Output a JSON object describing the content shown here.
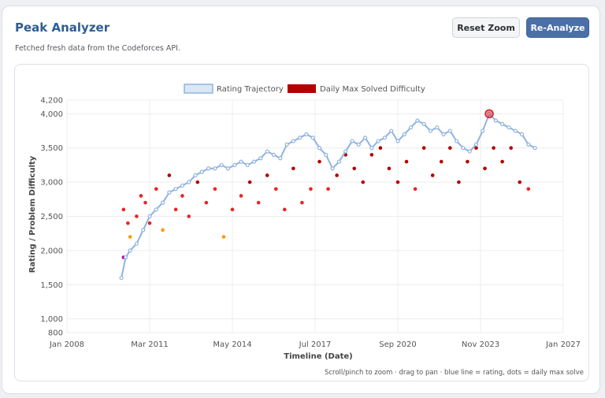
{
  "header": {
    "title": "Peak Analyzer",
    "subtitle": "Fetched fresh data from the Codeforces API.",
    "reset_zoom_label": "Reset Zoom",
    "reanalyze_label": "Re-Analyze"
  },
  "colors": {
    "title": "#2f5d93",
    "primary_button": "#4a70a7",
    "rating_line": "#8fb3e0",
    "daily_max": "#b30000",
    "peak_marker": "#e0303a"
  },
  "chart_data": {
    "type": "scatter",
    "xlabel": "Timeline (Date)",
    "ylabel": "Rating / Problem Difficulty",
    "x_ticks": [
      "Jan 2008",
      "Mar 2011",
      "May 2014",
      "Jul 2017",
      "Sep 2020",
      "Nov 2023",
      "Jan 2027"
    ],
    "y_ticks": [
      800,
      1000,
      1500,
      2000,
      2500,
      3000,
      3500,
      4000,
      4200
    ],
    "xlim": [
      "2008-01",
      "2027-01"
    ],
    "ylim": [
      800,
      4200
    ],
    "grid": true,
    "legend_position": "top",
    "legend": [
      "Rating Trajectory",
      "Daily Max Solved Difficulty"
    ],
    "footnote": "Scroll/pinch to zoom · drag to pan · blue line = rating, dots = daily max solve",
    "peak": {
      "x": "2024-03",
      "y": 4000
    },
    "series": [
      {
        "name": "Rating Trajectory",
        "points": [
          [
            "2010-02",
            1600
          ],
          [
            "2010-04",
            1900
          ],
          [
            "2010-06",
            2000
          ],
          [
            "2010-09",
            2100
          ],
          [
            "2010-12",
            2300
          ],
          [
            "2011-03",
            2500
          ],
          [
            "2011-06",
            2600
          ],
          [
            "2011-09",
            2700
          ],
          [
            "2011-12",
            2850
          ],
          [
            "2012-03",
            2900
          ],
          [
            "2012-06",
            2950
          ],
          [
            "2012-09",
            3000
          ],
          [
            "2012-12",
            3100
          ],
          [
            "2013-03",
            3150
          ],
          [
            "2013-06",
            3200
          ],
          [
            "2013-09",
            3200
          ],
          [
            "2013-12",
            3250
          ],
          [
            "2014-03",
            3200
          ],
          [
            "2014-06",
            3250
          ],
          [
            "2014-09",
            3300
          ],
          [
            "2014-12",
            3250
          ],
          [
            "2015-03",
            3300
          ],
          [
            "2015-06",
            3350
          ],
          [
            "2015-09",
            3450
          ],
          [
            "2015-12",
            3400
          ],
          [
            "2016-03",
            3350
          ],
          [
            "2016-06",
            3550
          ],
          [
            "2016-09",
            3600
          ],
          [
            "2016-12",
            3650
          ],
          [
            "2017-03",
            3700
          ],
          [
            "2017-06",
            3650
          ],
          [
            "2017-09",
            3500
          ],
          [
            "2017-12",
            3400
          ],
          [
            "2018-03",
            3200
          ],
          [
            "2018-06",
            3300
          ],
          [
            "2018-09",
            3450
          ],
          [
            "2018-12",
            3600
          ],
          [
            "2019-03",
            3550
          ],
          [
            "2019-06",
            3650
          ],
          [
            "2019-09",
            3500
          ],
          [
            "2019-12",
            3600
          ],
          [
            "2020-03",
            3650
          ],
          [
            "2020-06",
            3750
          ],
          [
            "2020-09",
            3600
          ],
          [
            "2020-12",
            3700
          ],
          [
            "2021-03",
            3800
          ],
          [
            "2021-06",
            3900
          ],
          [
            "2021-09",
            3850
          ],
          [
            "2021-12",
            3750
          ],
          [
            "2022-03",
            3800
          ],
          [
            "2022-06",
            3700
          ],
          [
            "2022-09",
            3750
          ],
          [
            "2022-12",
            3600
          ],
          [
            "2023-03",
            3500
          ],
          [
            "2023-06",
            3450
          ],
          [
            "2023-09",
            3550
          ],
          [
            "2023-12",
            3750
          ],
          [
            "2024-03",
            4000
          ],
          [
            "2024-06",
            3900
          ],
          [
            "2024-09",
            3850
          ],
          [
            "2024-12",
            3800
          ],
          [
            "2025-03",
            3750
          ],
          [
            "2025-06",
            3700
          ],
          [
            "2025-09",
            3550
          ],
          [
            "2025-12",
            3500
          ]
        ]
      },
      {
        "name": "Daily Max Solved Difficulty",
        "points": [
          [
            "2010-03",
            2600
          ],
          [
            "2010-03",
            1900
          ],
          [
            "2010-05",
            2400
          ],
          [
            "2010-06",
            2200
          ],
          [
            "2010-09",
            2500
          ],
          [
            "2010-11",
            2800
          ],
          [
            "2011-01",
            2700
          ],
          [
            "2011-03",
            2400
          ],
          [
            "2011-06",
            2900
          ],
          [
            "2011-09",
            2300
          ],
          [
            "2011-12",
            3100
          ],
          [
            "2012-03",
            2600
          ],
          [
            "2012-06",
            2800
          ],
          [
            "2012-09",
            2500
          ],
          [
            "2013-01",
            3000
          ],
          [
            "2013-05",
            2700
          ],
          [
            "2013-09",
            2900
          ],
          [
            "2014-01",
            2200
          ],
          [
            "2014-05",
            2600
          ],
          [
            "2014-09",
            2800
          ],
          [
            "2015-01",
            3000
          ],
          [
            "2015-05",
            2700
          ],
          [
            "2015-09",
            3100
          ],
          [
            "2016-01",
            2900
          ],
          [
            "2016-05",
            2600
          ],
          [
            "2016-09",
            3200
          ],
          [
            "2017-01",
            2700
          ],
          [
            "2017-05",
            2900
          ],
          [
            "2017-09",
            3300
          ],
          [
            "2018-01",
            2900
          ],
          [
            "2018-05",
            3100
          ],
          [
            "2018-09",
            3400
          ],
          [
            "2019-01",
            3200
          ],
          [
            "2019-05",
            3000
          ],
          [
            "2019-09",
            3400
          ],
          [
            "2020-01",
            3500
          ],
          [
            "2020-05",
            3200
          ],
          [
            "2020-09",
            3000
          ],
          [
            "2021-01",
            3300
          ],
          [
            "2021-05",
            2900
          ],
          [
            "2021-09",
            3500
          ],
          [
            "2022-01",
            3100
          ],
          [
            "2022-05",
            3300
          ],
          [
            "2022-09",
            3500
          ],
          [
            "2023-01",
            3000
          ],
          [
            "2023-05",
            3300
          ],
          [
            "2023-09",
            3500
          ],
          [
            "2024-01",
            3200
          ],
          [
            "2024-05",
            3500
          ],
          [
            "2024-09",
            3300
          ],
          [
            "2025-01",
            3500
          ],
          [
            "2025-05",
            3000
          ],
          [
            "2025-09",
            2900
          ]
        ]
      }
    ]
  }
}
